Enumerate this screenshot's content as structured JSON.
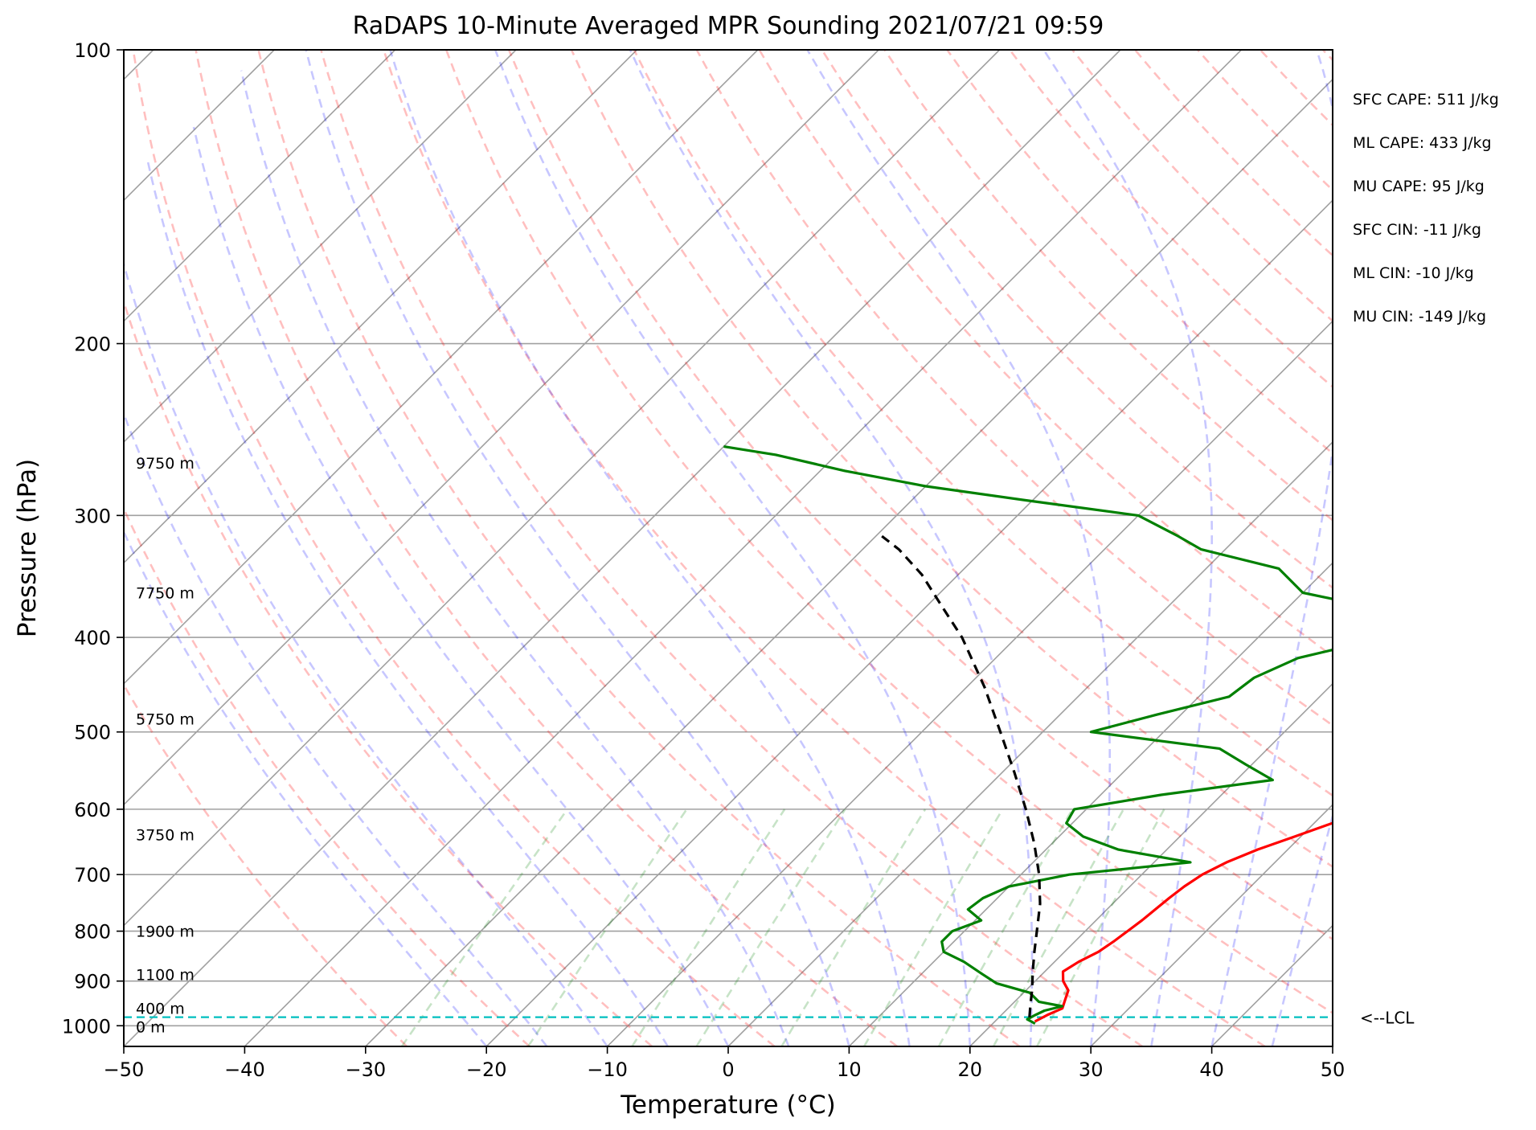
{
  "chart_data": {
    "type": "line",
    "chart_kind": "Skew-T log-P sounding",
    "title": "RaDAPS 10-Minute Averaged MPR Sounding 2021/07/21 09:59",
    "xlabel": "Temperature (°C)",
    "ylabel": "Pressure (hPa)",
    "xlim": [
      -50,
      50
    ],
    "ylim": [
      1050,
      100
    ],
    "y_scale": "log",
    "x_ticks": [
      -50,
      -40,
      -30,
      -20,
      -10,
      0,
      10,
      20,
      30,
      40,
      50
    ],
    "x_tick_labels": [
      "−50",
      "−40",
      "−30",
      "−20",
      "−10",
      "0",
      "10",
      "20",
      "30",
      "40",
      "50"
    ],
    "y_ticks": [
      100,
      200,
      300,
      400,
      500,
      600,
      700,
      800,
      900,
      1000
    ],
    "y_tick_labels": [
      "100",
      "200",
      "300",
      "400",
      "500",
      "600",
      "700",
      "800",
      "900",
      "1000"
    ],
    "grid": true,
    "height_labels": [
      {
        "text": "9750 m",
        "pressure": 265
      },
      {
        "text": "7750 m",
        "pressure": 360
      },
      {
        "text": "5750 m",
        "pressure": 485
      },
      {
        "text": "3750 m",
        "pressure": 637
      },
      {
        "text": "1900 m",
        "pressure": 800
      },
      {
        "text": "1100 m",
        "pressure": 886
      },
      {
        "text": "400 m",
        "pressure": 960
      },
      {
        "text": "0 m",
        "pressure": 1002
      }
    ],
    "lcl": {
      "label": "<--LCL",
      "pressure": 980
    },
    "indices": [
      "SFC CAPE: 511 J/kg",
      "ML CAPE: 433 J/kg",
      "MU CAPE: 95 J/kg",
      "SFC CIN: -11 J/kg",
      "ML CIN: -10 J/kg",
      "MU CIN: -149 J/kg"
    ],
    "colors": {
      "temperature": "#ff0000",
      "dewpoint": "#008000",
      "parcel": "#000000",
      "lcl": "#00bfbf",
      "dry_adiabat": "#ff0000",
      "moist_adiabat": "#0000ff",
      "mixing_ratio": "#008000",
      "isotherm": "#808080"
    },
    "series": [
      {
        "key": "temperature",
        "points": [
          [
            23.3,
            990
          ],
          [
            23.8,
            975
          ],
          [
            24.5,
            960
          ],
          [
            24.0,
            940
          ],
          [
            23.5,
            920
          ],
          [
            22.3,
            900
          ],
          [
            21.5,
            880
          ],
          [
            22.0,
            860
          ],
          [
            22.8,
            840
          ],
          [
            23.2,
            820
          ],
          [
            23.5,
            800
          ],
          [
            23.8,
            780
          ],
          [
            24.0,
            760
          ],
          [
            24.2,
            740
          ],
          [
            24.5,
            720
          ],
          [
            25.0,
            700
          ],
          [
            26.0,
            680
          ],
          [
            27.5,
            660
          ],
          [
            29.5,
            640
          ],
          [
            31.5,
            620
          ],
          [
            33.5,
            600
          ],
          [
            35.0,
            580
          ],
          [
            37.0,
            560
          ],
          [
            39.0,
            540
          ],
          [
            40.5,
            520
          ],
          [
            42.0,
            500
          ],
          [
            43.5,
            480
          ],
          [
            45.0,
            460
          ],
          [
            46.5,
            440
          ],
          [
            47.5,
            420
          ],
          [
            48.5,
            400
          ],
          [
            49.5,
            380
          ],
          [
            50.0,
            365
          ]
        ]
      },
      {
        "key": "dewpoint",
        "points": [
          [
            23.5,
            995
          ],
          [
            22.5,
            985
          ],
          [
            22.8,
            975
          ],
          [
            23.2,
            965
          ],
          [
            24.3,
            955
          ],
          [
            22.0,
            945
          ],
          [
            20.5,
            925
          ],
          [
            17.0,
            905
          ],
          [
            15.0,
            885
          ],
          [
            12.5,
            860
          ],
          [
            10.0,
            840
          ],
          [
            9.0,
            820
          ],
          [
            9.0,
            800
          ],
          [
            10.5,
            780
          ],
          [
            8.5,
            760
          ],
          [
            8.8,
            740
          ],
          [
            10.0,
            720
          ],
          [
            14.0,
            700
          ],
          [
            23.0,
            680
          ],
          [
            16.0,
            660
          ],
          [
            12.0,
            640
          ],
          [
            9.5,
            620
          ],
          [
            9.0,
            600
          ],
          [
            15.0,
            580
          ],
          [
            23.0,
            560
          ],
          [
            19.5,
            540
          ],
          [
            16.0,
            520
          ],
          [
            4.0,
            500
          ],
          [
            8.0,
            480
          ],
          [
            12.5,
            460
          ],
          [
            13.0,
            440
          ],
          [
            15.0,
            420
          ],
          [
            20.5,
            400
          ],
          [
            21.0,
            380
          ],
          [
            10.0,
            360
          ],
          [
            6.0,
            340
          ],
          [
            -2.0,
            325
          ],
          [
            -5.0,
            315
          ],
          [
            -10.0,
            300
          ],
          [
            -20.0,
            290
          ],
          [
            -30.0,
            280
          ],
          [
            -38.0,
            270
          ],
          [
            -45.0,
            260
          ],
          [
            -50.0,
            255
          ]
        ]
      },
      {
        "key": "parcel",
        "points": [
          [
            22.5,
            980
          ],
          [
            21.5,
            950
          ],
          [
            20.5,
            920
          ],
          [
            19.0,
            880
          ],
          [
            17.5,
            840
          ],
          [
            16.0,
            800
          ],
          [
            14.0,
            750
          ],
          [
            11.5,
            700
          ],
          [
            8.5,
            650
          ],
          [
            5.0,
            600
          ],
          [
            1.0,
            550
          ],
          [
            -3.5,
            500
          ],
          [
            -8.5,
            450
          ],
          [
            -14.5,
            400
          ],
          [
            -19.0,
            370
          ],
          [
            -23.0,
            345
          ],
          [
            -27.0,
            325
          ],
          [
            -29.5,
            315
          ]
        ]
      }
    ]
  }
}
